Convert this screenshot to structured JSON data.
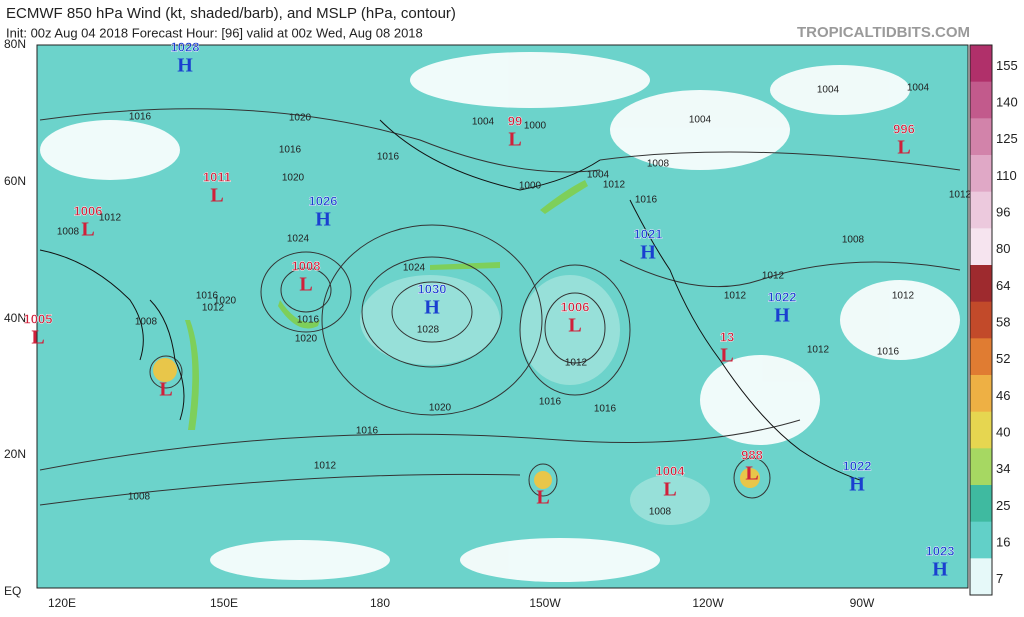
{
  "header": {
    "title": "ECMWF 850 hPa Wind (kt, shaded/barb), and MSLP (hPa, contour)",
    "subtitle": "Init: 00z Aug 04 2018   Forecast Hour: [96]   valid at 00z Wed, Aug 08 2018",
    "credit": "TROPICALTIDBITS.COM"
  },
  "map": {
    "lat_labels": [
      "80N",
      "60N",
      "40N",
      "20N",
      "EQ"
    ],
    "lon_labels": [
      "120E",
      "150E",
      "180",
      "150W",
      "120W",
      "90W"
    ],
    "centers": [
      {
        "symbol": "H",
        "value": "1028"
      },
      {
        "symbol": "L",
        "value": "1011"
      },
      {
        "symbol": "L",
        "value": "1006"
      },
      {
        "symbol": "H",
        "value": "1026"
      },
      {
        "symbol": "L",
        "value": "1008"
      },
      {
        "symbol": "H",
        "value": "1030"
      },
      {
        "symbol": "L",
        "value": "99"
      },
      {
        "symbol": "L",
        "value": "996"
      },
      {
        "symbol": "H",
        "value": "1021"
      },
      {
        "symbol": "L",
        "value": "1006"
      },
      {
        "symbol": "H",
        "value": "1022"
      },
      {
        "symbol": "L",
        "value": "1005"
      },
      {
        "symbol": "L",
        "value": "13"
      },
      {
        "symbol": "L",
        "value": "1004"
      },
      {
        "symbol": "L",
        "value": "988"
      },
      {
        "symbol": "H",
        "value": "1022"
      },
      {
        "symbol": "H",
        "value": "1023"
      },
      {
        "symbol": "L"
      },
      {
        "symbol": "L"
      }
    ],
    "contour_labels": [
      "1016",
      "1020",
      "1016",
      "1016",
      "1020",
      "1024",
      "1024",
      "1028",
      "1016",
      "1020",
      "1008",
      "1020",
      "1016",
      "1012",
      "1008",
      "1016",
      "1016",
      "1012",
      "1004",
      "1000",
      "1000",
      "1004",
      "1012",
      "1008",
      "1016",
      "1004",
      "1004",
      "1004",
      "1008",
      "1012",
      "1012",
      "1012",
      "1012",
      "1016",
      "1008",
      "1012",
      "1008",
      "1016",
      "1020",
      "1012",
      "1012"
    ]
  },
  "colorbar": {
    "levels": [
      "155",
      "140",
      "125",
      "110",
      "96",
      "80",
      "64",
      "58",
      "52",
      "46",
      "40",
      "34",
      "25",
      "16",
      "7"
    ],
    "colors": [
      "#b0306a",
      "#c25a8c",
      "#d283aa",
      "#e0a8c6",
      "#ecc9dd",
      "#f6e4ef",
      "#9e2a2e",
      "#c24a2a",
      "#e07c32",
      "#eeb044",
      "#e6d650",
      "#a6d862",
      "#3fbaa0",
      "#62d0c8",
      "#e6f9f9"
    ]
  }
}
